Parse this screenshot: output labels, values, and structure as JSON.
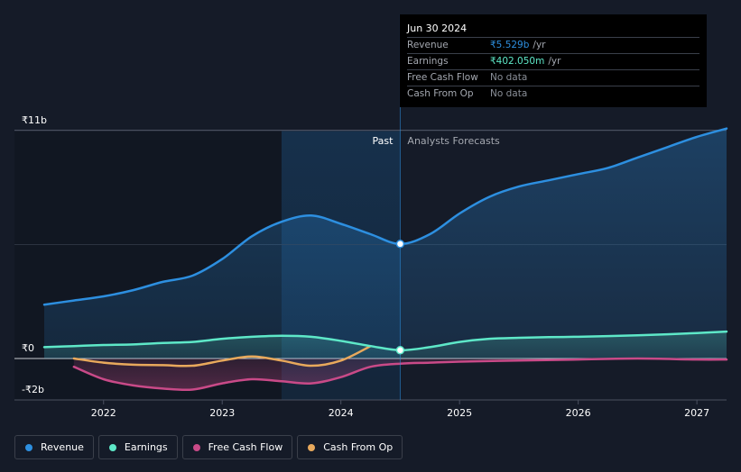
{
  "tooltip": {
    "date": "Jun 30 2024",
    "rows": [
      {
        "label": "Revenue",
        "value": "₹5.529b",
        "unit": "/yr",
        "color": "#2d8fe0"
      },
      {
        "label": "Earnings",
        "value": "₹402.050m",
        "unit": "/yr",
        "color": "#5ee8c8"
      },
      {
        "label": "Free Cash Flow",
        "value": "No data",
        "unit": "",
        "color": "#8a8f98"
      },
      {
        "label": "Cash From Op",
        "value": "No data",
        "unit": "",
        "color": "#8a8f98"
      }
    ]
  },
  "regions": {
    "past": "Past",
    "forecast": "Analysts Forecasts"
  },
  "legend": [
    {
      "name": "Revenue",
      "color": "#2d8fe0"
    },
    {
      "name": "Earnings",
      "color": "#5ee8c8"
    },
    {
      "name": "Free Cash Flow",
      "color": "#c94a88"
    },
    {
      "name": "Cash From Op",
      "color": "#e8a95c"
    }
  ],
  "chart_data": {
    "type": "line",
    "title": "",
    "xlabel": "",
    "ylabel": "",
    "xlim": [
      2021.5,
      2027.25
    ],
    "ylim": [
      -2,
      11
    ],
    "y_ticks": [
      {
        "value": 11,
        "label": "₹11b"
      },
      {
        "value": 0,
        "label": "₹0"
      },
      {
        "value": -2,
        "label": "-₹2b"
      }
    ],
    "x_ticks": [
      {
        "value": 2022,
        "label": "2022"
      },
      {
        "value": 2023,
        "label": "2023"
      },
      {
        "value": 2024,
        "label": "2024"
      },
      {
        "value": 2025,
        "label": "2025"
      },
      {
        "value": 2026,
        "label": "2026"
      },
      {
        "value": 2027,
        "label": "2027"
      }
    ],
    "past_start": 2023.5,
    "divider": 2024.5,
    "series": [
      {
        "name": "Revenue",
        "color": "#2d8fe0",
        "x": [
          2021.5,
          2021.75,
          2022.0,
          2022.25,
          2022.5,
          2022.75,
          2023.0,
          2023.25,
          2023.5,
          2023.75,
          2024.0,
          2024.25,
          2024.5,
          2024.75,
          2025.0,
          2025.25,
          2025.5,
          2025.75,
          2026.0,
          2026.25,
          2026.5,
          2026.75,
          2027.0,
          2027.25
        ],
        "values": [
          2.6,
          2.8,
          3.0,
          3.3,
          3.7,
          4.0,
          4.8,
          5.9,
          6.6,
          6.9,
          6.5,
          6.0,
          5.53,
          6.0,
          7.0,
          7.8,
          8.3,
          8.6,
          8.9,
          9.2,
          9.7,
          10.2,
          10.7,
          11.1
        ]
      },
      {
        "name": "Earnings",
        "color": "#5ee8c8",
        "x": [
          2021.5,
          2021.75,
          2022.0,
          2022.25,
          2022.5,
          2022.75,
          2023.0,
          2023.25,
          2023.5,
          2023.75,
          2024.0,
          2024.25,
          2024.5,
          2024.75,
          2025.0,
          2025.25,
          2025.5,
          2025.75,
          2026.0,
          2026.25,
          2026.5,
          2026.75,
          2027.0,
          2027.25
        ],
        "values": [
          0.55,
          0.6,
          0.65,
          0.68,
          0.75,
          0.8,
          0.95,
          1.05,
          1.1,
          1.05,
          0.85,
          0.6,
          0.4,
          0.55,
          0.8,
          0.95,
          1.0,
          1.03,
          1.05,
          1.08,
          1.12,
          1.17,
          1.23,
          1.3
        ]
      },
      {
        "name": "Free Cash Flow",
        "color": "#c94a88",
        "x": [
          2021.75,
          2022.0,
          2022.25,
          2022.5,
          2022.75,
          2023.0,
          2023.25,
          2023.5,
          2023.75,
          2024.0,
          2024.25,
          2024.5,
          2024.75,
          2025.0,
          2025.5,
          2026.0,
          2026.5,
          2027.0,
          2027.25
        ],
        "values": [
          -0.4,
          -1.0,
          -1.3,
          -1.45,
          -1.5,
          -1.2,
          -1.0,
          -1.1,
          -1.2,
          -0.9,
          -0.4,
          -0.25,
          -0.2,
          -0.15,
          -0.1,
          -0.05,
          0.0,
          -0.05,
          -0.05
        ]
      },
      {
        "name": "Cash From Op",
        "color": "#e8a95c",
        "x": [
          2021.75,
          2022.0,
          2022.25,
          2022.5,
          2022.75,
          2023.0,
          2023.25,
          2023.5,
          2023.75,
          2024.0,
          2024.25
        ],
        "values": [
          0.0,
          -0.2,
          -0.3,
          -0.32,
          -0.35,
          -0.1,
          0.1,
          -0.1,
          -0.35,
          -0.1,
          0.6
        ]
      }
    ],
    "markers": [
      {
        "series": "Revenue",
        "x": 2024.5,
        "value": 5.53
      },
      {
        "series": "Earnings",
        "x": 2024.5,
        "value": 0.4
      }
    ]
  }
}
